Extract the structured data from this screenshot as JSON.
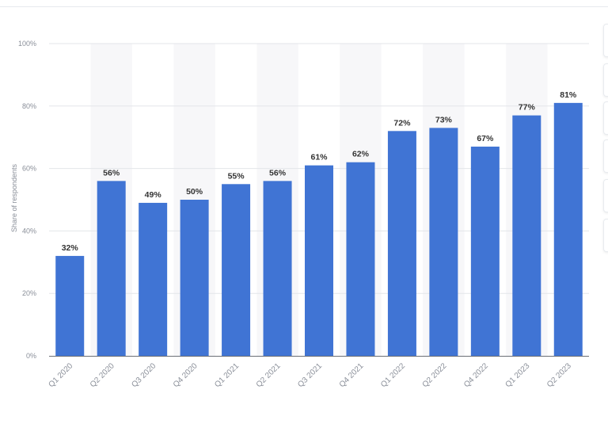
{
  "chart_data": {
    "type": "bar",
    "categories": [
      "Q1 2020",
      "Q2 2020",
      "Q3 2020",
      "Q4 2020",
      "Q1 2021",
      "Q2 2021",
      "Q3 2021",
      "Q4 2021",
      "Q1 2022",
      "Q2 2022",
      "Q4 2022",
      "Q1 2023",
      "Q2 2023"
    ],
    "values": [
      32,
      56,
      49,
      50,
      55,
      56,
      61,
      62,
      72,
      73,
      67,
      77,
      81
    ],
    "data_labels": [
      "32%",
      "56%",
      "49%",
      "50%",
      "55%",
      "56%",
      "61%",
      "62%",
      "72%",
      "73%",
      "67%",
      "77%",
      "81%"
    ],
    "ylabel": "Share of respondents",
    "ylim": [
      0,
      100
    ],
    "y_ticks": [
      0,
      20,
      40,
      60,
      80,
      100
    ],
    "y_tick_labels": [
      "0%",
      "20%",
      "40%",
      "60%",
      "80%",
      "100%"
    ],
    "grid": true,
    "alternate_column_shading": true,
    "bar_color": "#4074d4",
    "label_color": "#333333",
    "tick_color": "#8a8f99",
    "grid_color": "#e3e6ea",
    "shade_color": "#f7f7f9"
  }
}
